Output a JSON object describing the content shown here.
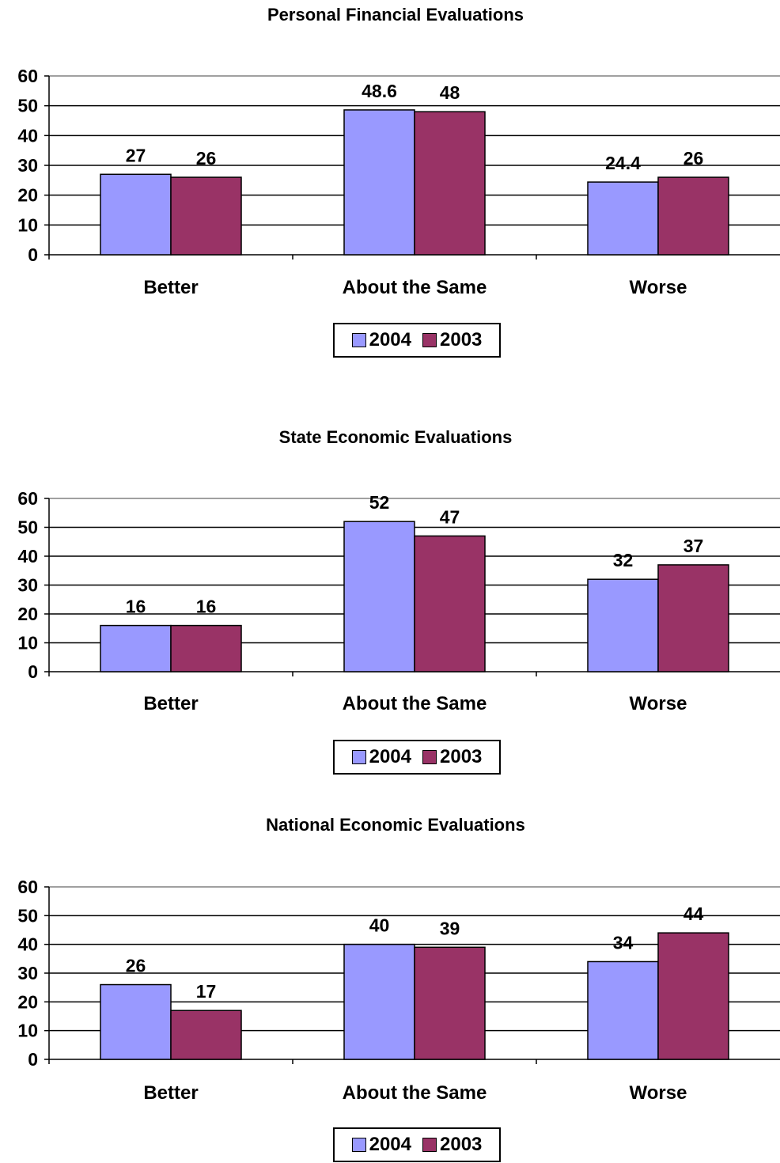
{
  "chart_data": [
    {
      "type": "bar",
      "title": "Personal Financial Evaluations",
      "categories": [
        "Better",
        "About the Same",
        "Worse"
      ],
      "series": [
        {
          "name": "2004",
          "color": "#9999ff",
          "values": [
            27,
            48.6,
            24.4
          ]
        },
        {
          "name": "2003",
          "color": "#993366",
          "values": [
            26,
            48,
            26
          ]
        }
      ],
      "ylim": [
        0,
        60
      ],
      "yticks": [
        0,
        10,
        20,
        30,
        40,
        50,
        60
      ],
      "grid": true,
      "legend": "bottom-center"
    },
    {
      "type": "bar",
      "title": "State Economic Evaluations",
      "categories": [
        "Better",
        "About the Same",
        "Worse"
      ],
      "series": [
        {
          "name": "2004",
          "color": "#9999ff",
          "values": [
            16,
            52,
            32
          ]
        },
        {
          "name": "2003",
          "color": "#993366",
          "values": [
            16,
            47,
            37
          ]
        }
      ],
      "ylim": [
        0,
        60
      ],
      "yticks": [
        0,
        10,
        20,
        30,
        40,
        50,
        60
      ],
      "grid": true,
      "legend": "bottom-center"
    },
    {
      "type": "bar",
      "title": "National Economic Evaluations",
      "categories": [
        "Better",
        "About the Same",
        "Worse"
      ],
      "series": [
        {
          "name": "2004",
          "color": "#9999ff",
          "values": [
            26,
            40,
            34
          ]
        },
        {
          "name": "2003",
          "color": "#993366",
          "values": [
            17,
            39,
            44
          ]
        }
      ],
      "ylim": [
        0,
        60
      ],
      "yticks": [
        0,
        10,
        20,
        30,
        40,
        50,
        60
      ],
      "grid": true,
      "legend": "bottom-center"
    }
  ]
}
